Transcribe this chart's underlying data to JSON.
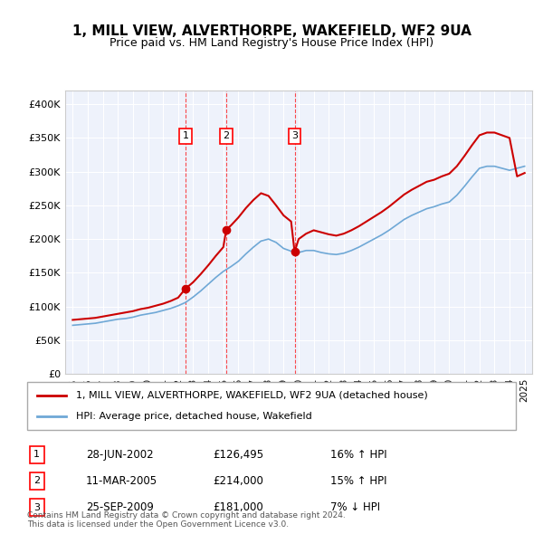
{
  "title1": "1, MILL VIEW, ALVERTHORPE, WAKEFIELD, WF2 9UA",
  "title2": "Price paid vs. HM Land Registry's House Price Index (HPI)",
  "bg_color": "#eef2fb",
  "plot_bg": "#eef2fb",
  "hpi_color": "#6fa8d6",
  "price_color": "#cc0000",
  "transactions": [
    {
      "num": 1,
      "date_label": "28-JUN-2002",
      "price": 126495,
      "pct": "16%",
      "dir": "↑",
      "x_year": 2002.49
    },
    {
      "num": 2,
      "date_label": "11-MAR-2005",
      "price": 214000,
      "pct": "15%",
      "dir": "↑",
      "x_year": 2005.19
    },
    {
      "num": 3,
      "date_label": "25-SEP-2009",
      "price": 181000,
      "pct": "7%",
      "dir": "↓",
      "x_year": 2009.73
    }
  ],
  "legend_line1": "1, MILL VIEW, ALVERTHORPE, WAKEFIELD, WF2 9UA (detached house)",
  "legend_line2": "HPI: Average price, detached house, Wakefield",
  "footer": "Contains HM Land Registry data © Crown copyright and database right 2024.\nThis data is licensed under the Open Government Licence v3.0.",
  "ylim": [
    0,
    420000
  ],
  "yticks": [
    0,
    50000,
    100000,
    150000,
    200000,
    250000,
    300000,
    350000,
    400000
  ],
  "xlim_start": 1994.5,
  "xlim_end": 2025.5
}
